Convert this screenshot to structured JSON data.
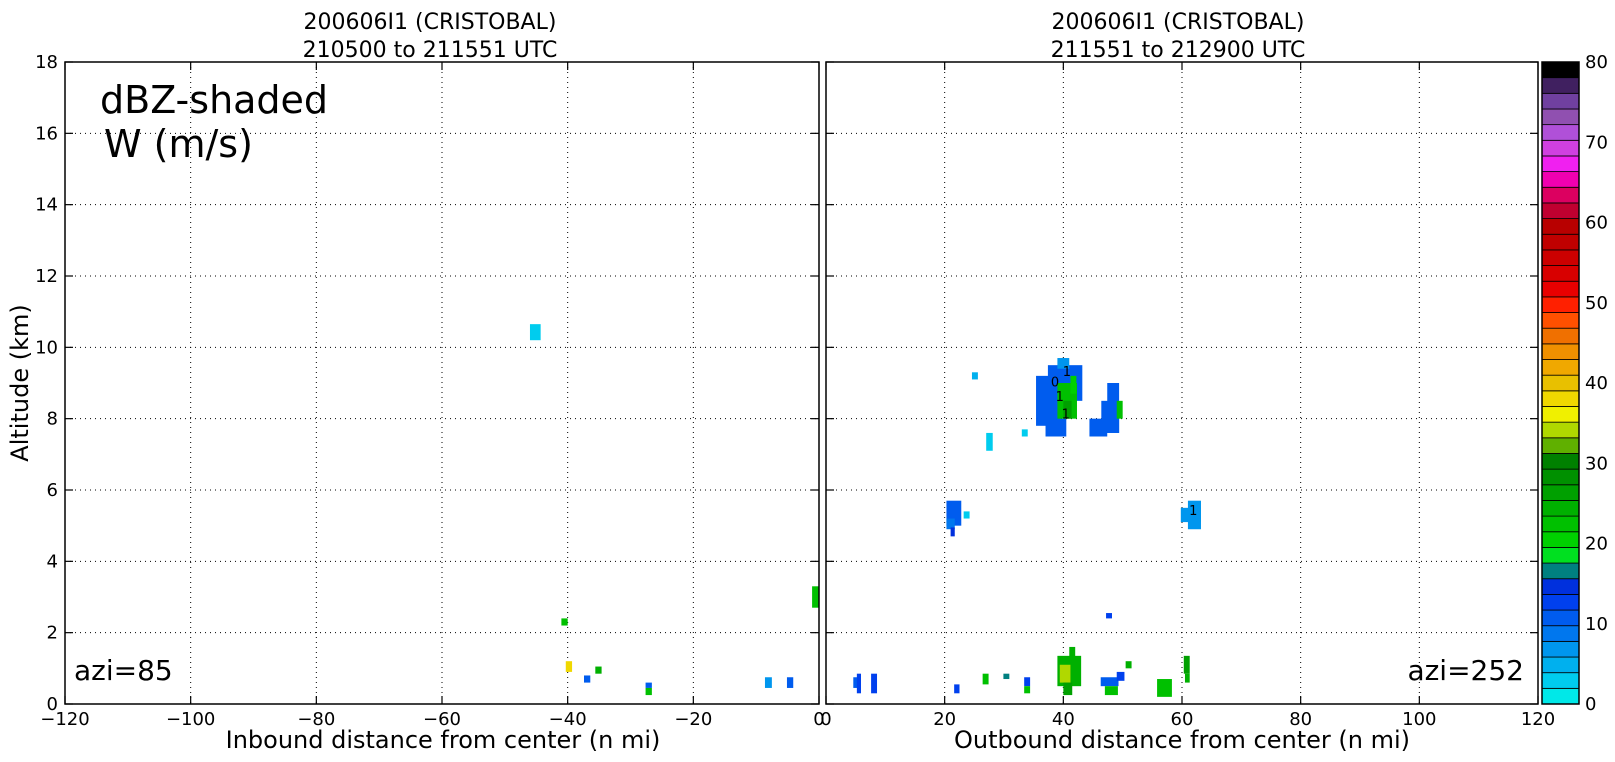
{
  "chart_data": [
    {
      "type": "heatmap",
      "panel": "left",
      "title_line1": "200606I1 (CRISTOBAL)",
      "title_line2": "210500 to 211551 UTC",
      "xlabel": "Inbound distance from center (n mi)",
      "ylabel": "Altitude (km)",
      "xlim": [
        -120,
        0
      ],
      "ylim": [
        0,
        18
      ],
      "xticks": [
        -120,
        -100,
        -80,
        -60,
        -40,
        -20,
        0
      ],
      "xtick_labels": [
        "−120",
        "−100",
        "−80",
        "−60",
        "−40",
        "−20",
        "0"
      ],
      "yticks": [
        0,
        2,
        4,
        6,
        8,
        10,
        12,
        14,
        16,
        18
      ],
      "grid": true,
      "annotation_line1": "dBZ-shaded",
      "annotation_line2": "W (m/s)",
      "azimuth_label": "azi=85",
      "cells": [
        {
          "x0": -46.0,
          "x1": -44.3,
          "y0": 10.2,
          "y1": 10.65,
          "dbz": 2
        },
        {
          "x0": -41.0,
          "x1": -40.0,
          "y0": 2.2,
          "y1": 2.4,
          "dbz": 22
        },
        {
          "x0": -40.3,
          "x1": -39.3,
          "y0": 0.9,
          "y1": 1.2,
          "dbz": 38
        },
        {
          "x0": -35.6,
          "x1": -34.6,
          "y0": 0.85,
          "y1": 1.05,
          "dbz": 24
        },
        {
          "x0": -37.4,
          "x1": -36.4,
          "y0": 0.6,
          "y1": 0.8,
          "dbz": 11
        },
        {
          "x0": -27.6,
          "x1": -26.6,
          "y0": 0.45,
          "y1": 0.6,
          "dbz": 11
        },
        {
          "x0": -27.6,
          "x1": -26.6,
          "y0": 0.25,
          "y1": 0.45,
          "dbz": 22
        },
        {
          "x0": -8.6,
          "x1": -7.5,
          "y0": 0.45,
          "y1": 0.75,
          "dbz": 7
        },
        {
          "x0": -5.1,
          "x1": -4.1,
          "y0": 0.45,
          "y1": 0.75,
          "dbz": 11
        },
        {
          "x0": -1.1,
          "x1": 0.0,
          "y0": 2.7,
          "y1": 3.3,
          "dbz": 22
        }
      ]
    },
    {
      "type": "heatmap",
      "panel": "right",
      "title_line1": "200606I1 (CRISTOBAL)",
      "title_line2": "211551 to 212900 UTC",
      "xlabel": "Outbound distance from center (n mi)",
      "xlim": [
        0,
        120
      ],
      "ylim": [
        0,
        18
      ],
      "xticks": [
        0,
        20,
        40,
        60,
        80,
        100,
        120
      ],
      "xtick_labels": [
        "0",
        "20",
        "40",
        "60",
        "80",
        "100",
        "120"
      ],
      "yticks": [
        0,
        2,
        4,
        6,
        8,
        10,
        12,
        14,
        16,
        18
      ],
      "grid": true,
      "azimuth_label": "azi=252",
      "contour_labels": [
        {
          "x": 38.6,
          "y": 8.9,
          "text": "0"
        },
        {
          "x": 40.6,
          "y": 9.2,
          "text": "1"
        },
        {
          "x": 39.4,
          "y": 8.5,
          "text": "1"
        },
        {
          "x": 40.4,
          "y": 8.0,
          "text": "1"
        },
        {
          "x": 61.9,
          "y": 5.3,
          "text": "1"
        }
      ],
      "cells": [
        {
          "x0": 37.4,
          "x1": 43.2,
          "y0": 8.5,
          "y1": 9.5,
          "dbz": 11
        },
        {
          "x0": 35.4,
          "x1": 39.6,
          "y0": 7.8,
          "y1": 9.2,
          "dbz": 11
        },
        {
          "x0": 37.0,
          "x1": 40.5,
          "y0": 7.5,
          "y1": 8.0,
          "dbz": 11
        },
        {
          "x0": 39.0,
          "x1": 41.0,
          "y0": 9.4,
          "y1": 9.7,
          "dbz": 7
        },
        {
          "x0": 39.0,
          "x1": 42.3,
          "y0": 8.0,
          "y1": 9.0,
          "dbz": 22
        },
        {
          "x0": 40.0,
          "x1": 41.4,
          "y0": 8.0,
          "y1": 8.5,
          "dbz": 27
        },
        {
          "x0": 41.2,
          "x1": 42.2,
          "y0": 8.7,
          "y1": 9.2,
          "dbz": 20
        },
        {
          "x0": 46.4,
          "x1": 49.4,
          "y0": 7.6,
          "y1": 8.5,
          "dbz": 11
        },
        {
          "x0": 47.4,
          "x1": 49.4,
          "y0": 7.6,
          "y1": 9.0,
          "dbz": 11
        },
        {
          "x0": 44.4,
          "x1": 47.4,
          "y0": 7.5,
          "y1": 8.0,
          "dbz": 11
        },
        {
          "x0": 49.0,
          "x1": 50.0,
          "y0": 8.0,
          "y1": 8.5,
          "dbz": 22
        },
        {
          "x0": 24.6,
          "x1": 25.6,
          "y0": 9.1,
          "y1": 9.3,
          "dbz": 5
        },
        {
          "x0": 27.0,
          "x1": 28.1,
          "y0": 7.1,
          "y1": 7.6,
          "dbz": 2
        },
        {
          "x0": 33.0,
          "x1": 34.0,
          "y0": 7.5,
          "y1": 7.7,
          "dbz": 2
        },
        {
          "x0": 20.3,
          "x1": 22.8,
          "y0": 5.0,
          "y1": 5.7,
          "dbz": 11
        },
        {
          "x0": 20.3,
          "x1": 21.7,
          "y0": 4.9,
          "y1": 5.2,
          "dbz": 9
        },
        {
          "x0": 21.0,
          "x1": 21.7,
          "y0": 4.7,
          "y1": 4.95,
          "dbz": 14
        },
        {
          "x0": 23.2,
          "x1": 24.2,
          "y0": 5.2,
          "y1": 5.4,
          "dbz": 2
        },
        {
          "x0": 59.8,
          "x1": 63.2,
          "y0": 5.1,
          "y1": 5.5,
          "dbz": 7
        },
        {
          "x0": 61.0,
          "x1": 63.2,
          "y0": 4.9,
          "y1": 5.7,
          "dbz": 7
        },
        {
          "x0": 47.2,
          "x1": 48.2,
          "y0": 2.4,
          "y1": 2.55,
          "dbz": 12
        },
        {
          "x0": 4.6,
          "x1": 5.6,
          "y0": 0.45,
          "y1": 0.75,
          "dbz": 11
        },
        {
          "x0": 5.2,
          "x1": 5.9,
          "y0": 0.3,
          "y1": 0.85,
          "dbz": 12
        },
        {
          "x0": 7.6,
          "x1": 8.6,
          "y0": 0.3,
          "y1": 0.85,
          "dbz": 12
        },
        {
          "x0": 21.6,
          "x1": 22.5,
          "y0": 0.3,
          "y1": 0.55,
          "dbz": 12
        },
        {
          "x0": 26.4,
          "x1": 27.4,
          "y0": 0.55,
          "y1": 0.85,
          "dbz": 22
        },
        {
          "x0": 29.9,
          "x1": 30.9,
          "y0": 0.7,
          "y1": 0.85,
          "dbz": 17
        },
        {
          "x0": 33.4,
          "x1": 34.4,
          "y0": 0.5,
          "y1": 0.75,
          "dbz": 12
        },
        {
          "x0": 33.4,
          "x1": 34.4,
          "y0": 0.3,
          "y1": 0.5,
          "dbz": 22
        },
        {
          "x0": 39.0,
          "x1": 43.0,
          "y0": 0.5,
          "y1": 1.35,
          "dbz": 24
        },
        {
          "x0": 39.4,
          "x1": 41.2,
          "y0": 0.6,
          "y1": 1.1,
          "dbz": 35
        },
        {
          "x0": 41.0,
          "x1": 42.0,
          "y0": 1.3,
          "y1": 1.6,
          "dbz": 24
        },
        {
          "x0": 40.0,
          "x1": 41.5,
          "y0": 0.25,
          "y1": 0.6,
          "dbz": 27
        },
        {
          "x0": 46.3,
          "x1": 49.3,
          "y0": 0.5,
          "y1": 0.75,
          "dbz": 11
        },
        {
          "x0": 47.0,
          "x1": 49.2,
          "y0": 0.25,
          "y1": 0.5,
          "dbz": 22
        },
        {
          "x0": 49.0,
          "x1": 50.3,
          "y0": 0.65,
          "y1": 0.9,
          "dbz": 12
        },
        {
          "x0": 50.5,
          "x1": 51.5,
          "y0": 1.0,
          "y1": 1.2,
          "dbz": 24
        },
        {
          "x0": 55.8,
          "x1": 58.3,
          "y0": 0.2,
          "y1": 0.7,
          "dbz": 22
        },
        {
          "x0": 60.3,
          "x1": 61.3,
          "y0": 0.85,
          "y1": 1.35,
          "dbz": 27
        },
        {
          "x0": 60.5,
          "x1": 61.3,
          "y0": 0.6,
          "y1": 0.85,
          "dbz": 24
        }
      ]
    }
  ],
  "colorbar": {
    "min": 0,
    "max": 80,
    "ticks": [
      0,
      10,
      20,
      30,
      40,
      50,
      60,
      70,
      80
    ],
    "colors": [
      "#00e8e8",
      "#00ccee",
      "#00b0ee",
      "#0096ee",
      "#0077ee",
      "#005cee",
      "#0040ee",
      "#0030dd",
      "#008080",
      "#00e020",
      "#00d000",
      "#00c000",
      "#00b000",
      "#00a000",
      "#009000",
      "#008000",
      "#60b000",
      "#b0d800",
      "#f0f000",
      "#f0d800",
      "#e8c000",
      "#f0a800",
      "#f09000",
      "#f07000",
      "#ff5000",
      "#ff2000",
      "#e80000",
      "#d80000",
      "#cc0000",
      "#c00000",
      "#b80000",
      "#c00030",
      "#dc0060",
      "#f000b0",
      "#f020f0",
      "#d040e0",
      "#b050d8",
      "#9050b0",
      "#7040a0",
      "#402060",
      "#000000"
    ]
  }
}
